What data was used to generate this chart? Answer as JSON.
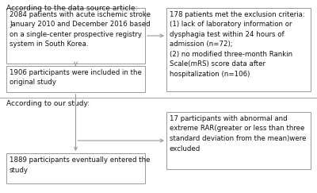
{
  "bg_color": "#ffffff",
  "header1_text": "According to the data source article:",
  "header2_text": "According to our study:",
  "box1_text": "2084 patients with acute ischemic stroke\nJanuary 2010 and December 2016 based\non a single-center prospective registry\nsystem in South Korea.",
  "box2_text": "1906 participants were included in the\noriginal study",
  "box3_text": "178 patients met the exclusion criteria:\n(1) lack of laboratory information or\ndysphagia test within 24 hours of\nadmission (n=72);\n(2) no modified three-month Rankin\nScale(mRS) score data after\nhospitalization (n=106)",
  "box4_text": "17 participants with abnormal and\nextreme RAR(greater or less than three\nstandard deviation from the mean)were\nexcluded",
  "box5_text": "1889 participants eventually entered the\nstudy",
  "font_size": 6.2,
  "header_font_size": 6.5,
  "box_edge_color": "#999999",
  "arrow_color": "#999999",
  "divider_color": "#aaaaaa",
  "text_color": "#111111"
}
